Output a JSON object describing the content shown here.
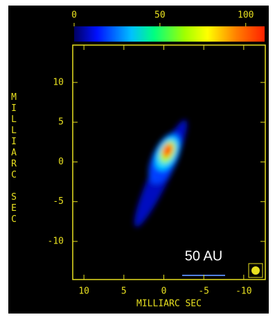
{
  "chart_data": {
    "type": "image",
    "xlabel": "MILLIARC SEC",
    "ylabel": "MILLIARC SEC",
    "xlim": [
      11.4,
      -12.7
    ],
    "xticks": [
      10,
      5,
      0,
      -5,
      -10
    ],
    "ylim": [
      -14.8,
      14.7
    ],
    "yticks": [
      10,
      5,
      0,
      -5,
      -10
    ],
    "colorbar": {
      "clim": [
        0,
        111
      ],
      "ticks": [
        0,
        50,
        100
      ]
    },
    "annotation": "50 AU",
    "axis_color": "#e8e020"
  }
}
